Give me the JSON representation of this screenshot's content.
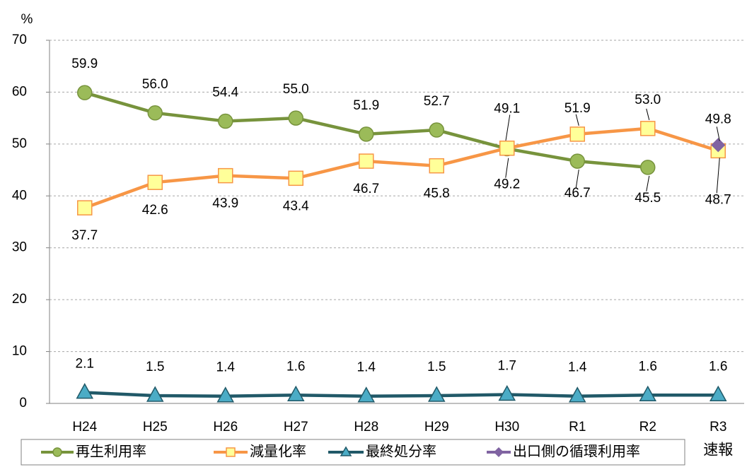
{
  "chart_data": {
    "type": "line",
    "y_unit": "%",
    "categories": [
      "H24",
      "H25",
      "H26",
      "H27",
      "H28",
      "H29",
      "H30",
      "R1",
      "R2",
      "R3"
    ],
    "x_tick_note": "速報",
    "ylim": [
      0,
      70
    ],
    "yticks": [
      0,
      10,
      20,
      30,
      40,
      50,
      60,
      70
    ],
    "grid": true,
    "legend": "bottom",
    "series": [
      {
        "name": "再生利用率",
        "color": "#77933c",
        "marker": "circle",
        "marker_fill": "#9bbb59",
        "values": [
          59.9,
          56.0,
          54.4,
          55.0,
          51.9,
          52.7,
          49.1,
          46.7,
          45.5,
          null
        ],
        "value_labels": [
          "59.9",
          "56.0",
          "54.4",
          "55.0",
          "51.9",
          "52.7",
          "49.1",
          "46.7",
          "45.5",
          null
        ]
      },
      {
        "name": "減量化率",
        "color": "#f79646",
        "marker": "square",
        "marker_fill": "#ffff99",
        "values": [
          37.7,
          42.6,
          43.9,
          43.4,
          46.7,
          45.8,
          49.2,
          51.9,
          53.0,
          48.7
        ],
        "value_labels": [
          "37.7",
          "42.6",
          "43.9",
          "43.4",
          "46.7",
          "45.8",
          "49.2",
          "51.9",
          "53.0",
          "48.7"
        ]
      },
      {
        "name": "最終処分率",
        "color": "#215968",
        "marker": "triangle",
        "marker_fill": "#4bacc6",
        "values": [
          2.1,
          1.5,
          1.4,
          1.6,
          1.4,
          1.5,
          1.7,
          1.4,
          1.6,
          1.6
        ],
        "value_labels": [
          "2.1",
          "1.5",
          "1.4",
          "1.6",
          "1.4",
          "1.5",
          "1.7",
          "1.4",
          "1.6",
          "1.6"
        ]
      },
      {
        "name": "出口側の循環利用率",
        "color": "#8064a2",
        "marker": "diamond",
        "marker_fill": "#8064a2",
        "values": [
          null,
          null,
          null,
          null,
          null,
          null,
          null,
          null,
          null,
          49.8
        ],
        "value_labels": [
          null,
          null,
          null,
          null,
          null,
          null,
          null,
          null,
          null,
          "49.8"
        ]
      }
    ]
  }
}
